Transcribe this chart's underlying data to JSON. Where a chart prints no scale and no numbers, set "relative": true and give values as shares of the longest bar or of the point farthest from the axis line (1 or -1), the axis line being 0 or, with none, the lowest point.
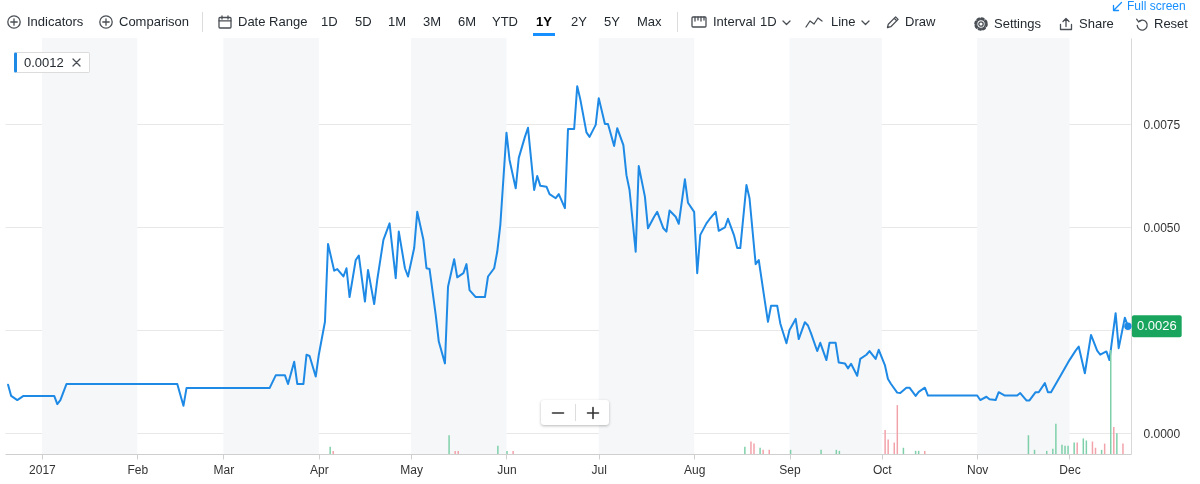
{
  "chart_data": [
    {
      "type": "line",
      "annotations": [
        "Indicators",
        "Comparison",
        "Date Range",
        "1D",
        "5D",
        "1M",
        "3M",
        "6M",
        "YTD",
        "1Y",
        "2Y",
        "5Y",
        "Max",
        "Interval",
        "1D",
        "Line",
        "Draw",
        "Settings",
        "Share",
        "Reset",
        "Full screen",
        "0.0012",
        {
          "text": "0.0026",
          "x": "2017-12-20",
          "y": 0.0026
        }
      ],
      "x": [
        "2016-12-21",
        "2016-12-22",
        "2016-12-24",
        "2016-12-26",
        "2017-01-05",
        "2017-01-06",
        "2017-01-07",
        "2017-01-09",
        "2017-02-14",
        "2017-02-16",
        "2017-02-17",
        "2017-03-16",
        "2017-03-18",
        "2017-03-21",
        "2017-03-22",
        "2017-03-24",
        "2017-03-25",
        "2017-03-27",
        "2017-03-28",
        "2017-03-29",
        "2017-03-31",
        "2017-04-01",
        "2017-04-03",
        "2017-04-04",
        "2017-04-06",
        "2017-04-07",
        "2017-04-09",
        "2017-04-10",
        "2017-04-11",
        "2017-04-13",
        "2017-04-14",
        "2017-04-16",
        "2017-04-17",
        "2017-04-19",
        "2017-04-20",
        "2017-04-22",
        "2017-04-23",
        "2017-04-24",
        "2017-04-26",
        "2017-04-27",
        "2017-04-29",
        "2017-04-30",
        "2017-05-02",
        "2017-05-03",
        "2017-05-05",
        "2017-05-06",
        "2017-05-07",
        "2017-05-09",
        "2017-05-10",
        "2017-05-12",
        "2017-05-13",
        "2017-05-15",
        "2017-05-16",
        "2017-05-18",
        "2017-05-19",
        "2017-05-20",
        "2017-05-22",
        "2017-05-25",
        "2017-05-26",
        "2017-05-28",
        "2017-05-29",
        "2017-05-30",
        "2017-06-01",
        "2017-06-02",
        "2017-06-04",
        "2017-06-05",
        "2017-06-07",
        "2017-06-08",
        "2017-06-10",
        "2017-06-11",
        "2017-06-12",
        "2017-06-14",
        "2017-06-15",
        "2017-06-17",
        "2017-06-18",
        "2017-06-20",
        "2017-06-21",
        "2017-06-23",
        "2017-06-24",
        "2017-06-25",
        "2017-06-27",
        "2017-06-28",
        "2017-06-30",
        "2017-07-01",
        "2017-07-03",
        "2017-07-04",
        "2017-07-06",
        "2017-07-07",
        "2017-07-09",
        "2017-07-10",
        "2017-07-11",
        "2017-07-13",
        "2017-07-14",
        "2017-07-16",
        "2017-07-17",
        "2017-07-19",
        "2017-07-20",
        "2017-07-22",
        "2017-07-23",
        "2017-07-24",
        "2017-07-26",
        "2017-07-27",
        "2017-07-29",
        "2017-07-30",
        "2017-08-01",
        "2017-08-02",
        "2017-08-03",
        "2017-08-05",
        "2017-08-06",
        "2017-08-08",
        "2017-08-09",
        "2017-08-11",
        "2017-08-12",
        "2017-08-14",
        "2017-08-15",
        "2017-08-16",
        "2017-08-18",
        "2017-08-19",
        "2017-08-21",
        "2017-08-22",
        "2017-08-24",
        "2017-08-25",
        "2017-08-26",
        "2017-08-28",
        "2017-08-29",
        "2017-08-31",
        "2017-09-01",
        "2017-09-03",
        "2017-09-04",
        "2017-09-06",
        "2017-09-07",
        "2017-09-08",
        "2017-09-10",
        "2017-09-11",
        "2017-09-13",
        "2017-09-14",
        "2017-09-16",
        "2017-09-17",
        "2017-09-19",
        "2017-09-20",
        "2017-09-21",
        "2017-09-23",
        "2017-09-24",
        "2017-09-26",
        "2017-09-27",
        "2017-09-29",
        "2017-09-30",
        "2017-10-02",
        "2017-10-03",
        "2017-10-04",
        "2017-10-06",
        "2017-10-07",
        "2017-10-09",
        "2017-10-10",
        "2017-10-12",
        "2017-10-13",
        "2017-10-15",
        "2017-10-16",
        "2017-11-01",
        "2017-11-02",
        "2017-11-04",
        "2017-11-05",
        "2017-11-07",
        "2017-11-08",
        "2017-11-10",
        "2017-11-14",
        "2017-11-15",
        "2017-11-17",
        "2017-11-18",
        "2017-11-20",
        "2017-11-21",
        "2017-11-23",
        "2017-11-24",
        "2017-11-25",
        "2017-11-28",
        "2017-12-01",
        "2017-12-03",
        "2017-12-04",
        "2017-12-06",
        "2017-12-08",
        "2017-12-10",
        "2017-12-11",
        "2017-12-13",
        "2017-12-14",
        "2017-12-16",
        "2017-12-17",
        "2017-12-19",
        "2017-12-20"
      ],
      "series": [
        {
          "color": "#1e8ae6",
          "values": [
            0.00118,
            0.00091,
            0.00081,
            0.00091,
            0.00091,
            0.00071,
            0.00081,
            0.0012,
            0.0012,
            0.00067,
            0.0011,
            0.0011,
            0.00141,
            0.00141,
            0.0012,
            0.00174,
            0.0012,
            0.0012,
            0.00191,
            0.00188,
            0.00138,
            0.00191,
            0.00271,
            0.0046,
            0.00395,
            0.00399,
            0.00381,
            0.00401,
            0.00331,
            0.00421,
            0.00432,
            0.0032,
            0.00397,
            0.00314,
            0.00373,
            0.0047,
            0.0049,
            0.0051,
            0.00377,
            0.0049,
            0.00401,
            0.00381,
            0.0045,
            0.00538,
            0.0047,
            0.00401,
            0.00399,
            0.00288,
            0.00223,
            0.0017,
            0.00356,
            0.00423,
            0.00379,
            0.00389,
            0.00411,
            0.00348,
            0.00331,
            0.00331,
            0.00381,
            0.00401,
            0.00441,
            0.00506,
            0.0073,
            0.00664,
            0.00595,
            0.00669,
            0.0072,
            0.00742,
            0.00591,
            0.00625,
            0.00601,
            0.00599,
            0.00581,
            0.00571,
            0.00581,
            0.00547,
            0.00739,
            0.00739,
            0.00843,
            0.00811,
            0.00731,
            0.0072,
            0.00749,
            0.00814,
            0.00751,
            0.00751,
            0.00698,
            0.00741,
            0.007,
            0.00627,
            0.00591,
            0.00441,
            0.00649,
            0.00575,
            0.00498,
            0.00526,
            0.00538,
            0.00498,
            0.0049,
            0.00541,
            0.00526,
            0.00509,
            0.00617,
            0.0056,
            0.00538,
            0.00389,
            0.00482,
            0.0051,
            0.0052,
            0.00538,
            0.00492,
            0.005,
            0.00521,
            0.0048,
            0.0045,
            0.0045,
            0.00603,
            0.00571,
            0.00411,
            0.00421,
            0.0032,
            0.00271,
            0.0031,
            0.0031,
            0.00267,
            0.00219,
            0.00251,
            0.00278,
            0.00229,
            0.0027,
            0.00262,
            0.00243,
            0.002,
            0.0022,
            0.00178,
            0.0022,
            0.0022,
            0.00172,
            0.0017,
            0.00158,
            0.00169,
            0.0014,
            0.00181,
            0.00191,
            0.002,
            0.00181,
            0.00203,
            0.00166,
            0.00132,
            0.0012,
            0.00099,
            0.00098,
            0.00111,
            0.00111,
            0.00091,
            0.00101,
            0.00111,
            0.00092,
            0.00092,
            0.00081,
            0.00089,
            0.00083,
            0.00081,
            0.001,
            0.00092,
            0.00092,
            0.00098,
            0.0008,
            0.0008,
            0.001,
            0.001,
            0.00122,
            0.001,
            0.001,
            0.00139,
            0.00178,
            0.00201,
            0.00211,
            0.00146,
            0.00239,
            0.00201,
            0.00191,
            0.00199,
            0.00178,
            0.00292,
            0.00207,
            0.00281,
            0.0026
          ]
        }
      ],
      "xlim": [
        "2016-12-20",
        "2017-12-21"
      ],
      "xticks": [
        {
          "value": "2017-01-01",
          "label": "2017"
        },
        {
          "value": "2017-02-01",
          "label": "Feb"
        },
        {
          "value": "2017-03-01",
          "label": "Mar"
        },
        {
          "value": "2017-04-01",
          "label": "Apr"
        },
        {
          "value": "2017-05-01",
          "label": "May"
        },
        {
          "value": "2017-06-01",
          "label": "Jun"
        },
        {
          "value": "2017-07-01",
          "label": "Jul"
        },
        {
          "value": "2017-08-01",
          "label": "Aug"
        },
        {
          "value": "2017-09-01",
          "label": "Sep"
        },
        {
          "value": "2017-10-01",
          "label": "Oct"
        },
        {
          "value": "2017-11-01",
          "label": "Nov"
        },
        {
          "value": "2017-12-01",
          "label": "Dec"
        }
      ],
      "ylim": [
        -0.0005,
        0.0096
      ],
      "yticks": [
        {
          "value": 0,
          "label": "0.0000"
        },
        {
          "value": 0.0025,
          "label": null
        },
        {
          "value": 0.005,
          "label": "0.0050"
        },
        0.0075
      ],
      "grid": "y",
      "bands": [
        {
          "axis": "x",
          "from": "2017-01-01",
          "to": "2017-02-01",
          "color": "#f5f7f8"
        },
        {
          "axis": "x",
          "from": "2017-03-01",
          "to": "2017-04-01",
          "color": "#f5f7f8"
        },
        {
          "axis": "x",
          "from": "2017-05-01",
          "to": "2017-06-01",
          "color": "#f5f7f8"
        },
        {
          "axis": "x",
          "from": "2017-07-01",
          "to": "2017-08-01",
          "color": "#f5f7f8"
        },
        {
          "axis": "x",
          "from": "2017-09-01",
          "to": "2017-10-01",
          "color": "#f5f7f8"
        },
        {
          "axis": "x",
          "from": "2017-11-01",
          "to": "2017-12-01",
          "color": "#f5f7f8"
        }
      ]
    },
    {
      "type": "bar",
      "relative": true,
      "tick_labels": false,
      "x": [
        "2017-04-04",
        "2017-04-05",
        "2017-05-13",
        "2017-05-15",
        "2017-05-16",
        "2017-05-29",
        "2017-06-01",
        "2017-06-03",
        "2017-08-18",
        "2017-08-20",
        "2017-08-21",
        "2017-08-23",
        "2017-08-24",
        "2017-08-26",
        "2017-09-02",
        "2017-09-12",
        "2017-09-17",
        "2017-09-18",
        "2017-10-03",
        "2017-10-04",
        "2017-10-06",
        "2017-10-07",
        "2017-10-09",
        "2017-10-13",
        "2017-10-14",
        "2017-10-16",
        "2017-11-19",
        "2017-11-21",
        "2017-11-25",
        "2017-11-27",
        "2017-11-28",
        "2017-11-30",
        "2017-12-01",
        "2017-12-02",
        "2017-12-04",
        "2017-12-05",
        "2017-12-07",
        "2017-12-08",
        "2017-12-10",
        "2017-12-11",
        "2017-12-13",
        "2017-12-14",
        "2017-12-16",
        "2017-12-17",
        "2017-12-18",
        "2017-12-20"
      ],
      "values": [
        0.07,
        0.03,
        0.18,
        0.03,
        0.03,
        0.08,
        0.03,
        0.03,
        0.07,
        0.12,
        0.1,
        0.06,
        0.04,
        0.04,
        0.04,
        0.04,
        0.04,
        0.03,
        0.23,
        0.14,
        0.11,
        0.47,
        0.06,
        0.03,
        0.03,
        0.03,
        0.18,
        0.04,
        0.03,
        0.05,
        0.29,
        0.09,
        0.08,
        0.08,
        0.11,
        0.11,
        0.15,
        0.13,
        0.12,
        0.06,
        0.04,
        0.1,
        1,
        0.26,
        0.2,
        0.1
      ],
      "colors": [
        "#7fd0aa",
        "#f2a3aa",
        "#7fd0aa",
        "#f2a3aa",
        "#f2a3aa",
        "#7fd0aa",
        "#7fd0aa",
        "#f2a3aa",
        "#7fd0aa",
        "#f2a3aa",
        "#f2a3aa",
        "#7fd0aa",
        "#f2a3aa",
        "#f2a3aa",
        "#7fd0aa",
        "#7fd0aa",
        "#7fd0aa",
        "#7fd0aa",
        "#f2a3aa",
        "#f2a3aa",
        "#f2a3aa",
        "#f2a3aa",
        "#7fd0aa",
        "#7fd0aa",
        "#7fd0aa",
        "#f2a3aa",
        "#7fd0aa",
        "#7fd0aa",
        "#7fd0aa",
        "#7fd0aa",
        "#7fd0aa",
        "#7fd0aa",
        "#7fd0aa",
        "#7fd0aa",
        "#7fd0aa",
        "#f2a3aa",
        "#7fd0aa",
        "#7fd0aa",
        "#f2a3aa",
        "#f2a3aa",
        "#7fd0aa",
        "#f2a3aa",
        "#7fd0aa",
        "#f2a3aa",
        "#7fd0aa",
        "#f2a3aa"
      ],
      "xlim": [
        "2016-12-20",
        "2017-12-21"
      ]
    }
  ]
}
